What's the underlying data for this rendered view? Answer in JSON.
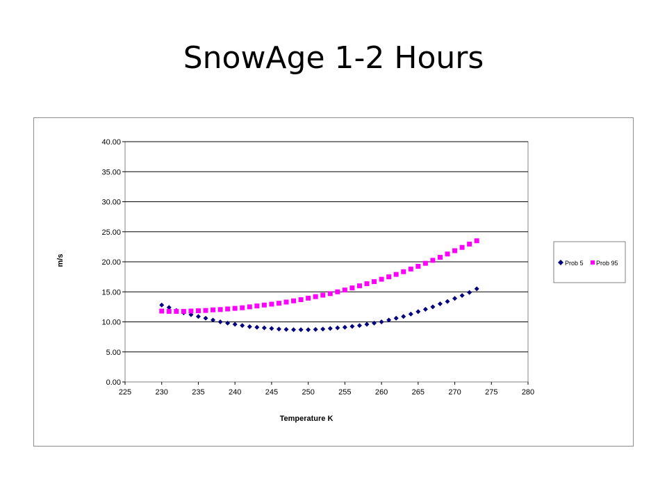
{
  "slide": {
    "title": "SnowAge 1-2 Hours"
  },
  "chart_data": {
    "type": "scatter",
    "title": "",
    "xlabel": "Temperature K",
    "ylabel": "m/s",
    "xlim": [
      225,
      280
    ],
    "ylim": [
      0,
      40
    ],
    "x_ticks": [
      "225",
      "230",
      "235",
      "240",
      "245",
      "250",
      "255",
      "260",
      "265",
      "270",
      "275",
      "280"
    ],
    "y_ticks": [
      "0.00",
      "5.00",
      "10.00",
      "15.00",
      "20.00",
      "25.00",
      "30.00",
      "35.00",
      "40.00"
    ],
    "grid": "horizontal",
    "legend_position": "right",
    "x": [
      230,
      231,
      232,
      233,
      234,
      235,
      236,
      237,
      238,
      239,
      240,
      241,
      242,
      243,
      244,
      245,
      246,
      247,
      248,
      249,
      250,
      251,
      252,
      253,
      254,
      255,
      256,
      257,
      258,
      259,
      260,
      261,
      262,
      263,
      264,
      265,
      266,
      267,
      268,
      269,
      270,
      271,
      272,
      273
    ],
    "series": [
      {
        "name": "Prob 5",
        "color": "#000080",
        "marker": "diamond",
        "values": [
          12.8,
          12.4,
          11.9,
          11.5,
          11.2,
          10.9,
          10.6,
          10.3,
          10.0,
          9.8,
          9.6,
          9.4,
          9.2,
          9.1,
          9.0,
          8.9,
          8.8,
          8.75,
          8.7,
          8.7,
          8.7,
          8.75,
          8.8,
          8.9,
          9.0,
          9.1,
          9.25,
          9.4,
          9.6,
          9.8,
          10.0,
          10.3,
          10.6,
          10.9,
          11.3,
          11.7,
          12.1,
          12.5,
          13.0,
          13.4,
          13.9,
          14.4,
          14.9,
          15.5
        ]
      },
      {
        "name": "Prob 95",
        "color": "#ff00ff",
        "marker": "square",
        "values": [
          11.8,
          11.75,
          11.75,
          11.75,
          11.8,
          11.85,
          11.9,
          12.0,
          12.05,
          12.15,
          12.25,
          12.35,
          12.5,
          12.65,
          12.8,
          12.95,
          13.1,
          13.3,
          13.5,
          13.7,
          13.95,
          14.2,
          14.45,
          14.7,
          15.0,
          15.3,
          15.65,
          16.0,
          16.35,
          16.7,
          17.1,
          17.5,
          17.9,
          18.35,
          18.8,
          19.25,
          19.75,
          20.25,
          20.75,
          21.3,
          21.85,
          22.4,
          22.95,
          23.5
        ]
      }
    ]
  }
}
